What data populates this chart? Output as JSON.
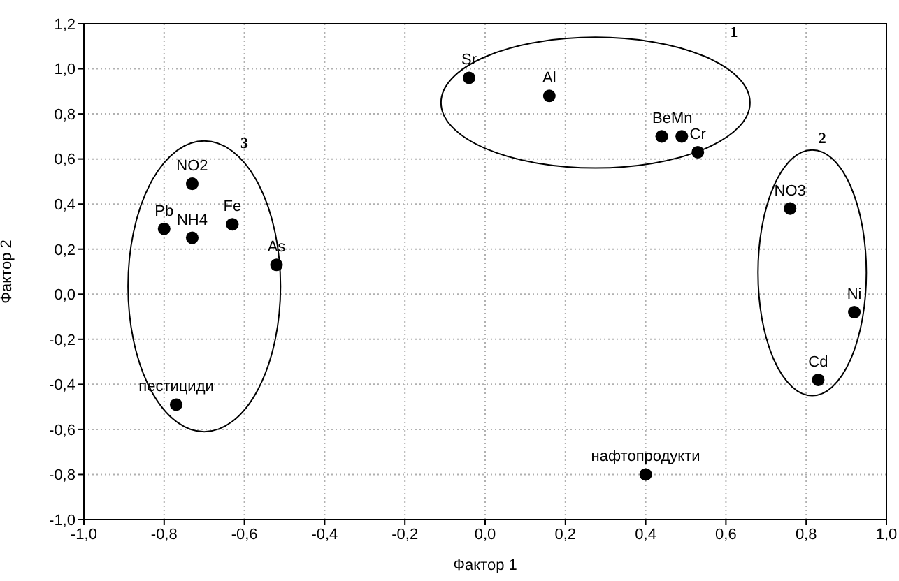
{
  "chart_data": {
    "type": "scatter",
    "xlabel": "Фактор 1",
    "ylabel": "Фактор 2",
    "xlim": [
      -1.0,
      1.0
    ],
    "ylim": [
      -1.0,
      1.2
    ],
    "xticks": [
      {
        "value": -1.0,
        "label": "-1,0"
      },
      {
        "value": -0.8,
        "label": "-0,8"
      },
      {
        "value": -0.6,
        "label": "-0,6"
      },
      {
        "value": -0.4,
        "label": "-0,4"
      },
      {
        "value": -0.2,
        "label": "-0,2"
      },
      {
        "value": 0.0,
        "label": "0,0"
      },
      {
        "value": 0.2,
        "label": "0,2"
      },
      {
        "value": 0.4,
        "label": "0,4"
      },
      {
        "value": 0.6,
        "label": "0,6"
      },
      {
        "value": 0.8,
        "label": "0,8"
      },
      {
        "value": 1.0,
        "label": "1,0"
      }
    ],
    "yticks": [
      {
        "value": -1.0,
        "label": "-1,0"
      },
      {
        "value": -0.8,
        "label": "-0,8"
      },
      {
        "value": -0.6,
        "label": "-0,6"
      },
      {
        "value": -0.4,
        "label": "-0,4"
      },
      {
        "value": -0.2,
        "label": "-0,2"
      },
      {
        "value": 0.0,
        "label": "0,0"
      },
      {
        "value": 0.2,
        "label": "0,2"
      },
      {
        "value": 0.4,
        "label": "0,4"
      },
      {
        "value": 0.6,
        "label": "0,6"
      },
      {
        "value": 0.8,
        "label": "0,8"
      },
      {
        "value": 1.0,
        "label": "1,0"
      },
      {
        "value": 1.2,
        "label": "1,2"
      }
    ],
    "grid": true,
    "legend": false,
    "marker": "circle",
    "annotations": [
      "1",
      "2",
      "3"
    ],
    "series": [
      {
        "name": "Sr",
        "color": "#000000",
        "x": [
          -0.04
        ],
        "values": [
          0.96
        ]
      },
      {
        "name": "Al",
        "color": "#000000",
        "x": [
          0.16
        ],
        "values": [
          0.88
        ]
      },
      {
        "name": "Be",
        "color": "#000000",
        "x": [
          0.44
        ],
        "values": [
          0.7
        ]
      },
      {
        "name": "Mn",
        "color": "#000000",
        "x": [
          0.49
        ],
        "values": [
          0.7
        ]
      },
      {
        "name": "Cr",
        "color": "#000000",
        "x": [
          0.53
        ],
        "values": [
          0.63
        ]
      },
      {
        "name": "NO3",
        "color": "#000000",
        "x": [
          0.76
        ],
        "values": [
          0.38
        ]
      },
      {
        "name": "Ni",
        "color": "#000000",
        "x": [
          0.92
        ],
        "values": [
          -0.08
        ]
      },
      {
        "name": "Cd",
        "color": "#000000",
        "x": [
          0.83
        ],
        "values": [
          -0.38
        ]
      },
      {
        "name": "нафтопродукти",
        "color": "#000000",
        "x": [
          0.4
        ],
        "values": [
          -0.8
        ]
      },
      {
        "name": "NO2",
        "color": "#000000",
        "x": [
          -0.73
        ],
        "values": [
          0.49
        ]
      },
      {
        "name": "Pb",
        "color": "#000000",
        "x": [
          -0.8
        ],
        "values": [
          0.29
        ]
      },
      {
        "name": "NH4",
        "color": "#000000",
        "x": [
          -0.73
        ],
        "values": [
          0.25
        ]
      },
      {
        "name": "Fe",
        "color": "#000000",
        "x": [
          -0.63
        ],
        "values": [
          0.31
        ]
      },
      {
        "name": "As",
        "color": "#000000",
        "x": [
          -0.52
        ],
        "values": [
          0.13
        ]
      },
      {
        "name": "пестициди",
        "color": "#000000",
        "x": [
          -0.77
        ],
        "values": [
          -0.49
        ]
      }
    ]
  }
}
